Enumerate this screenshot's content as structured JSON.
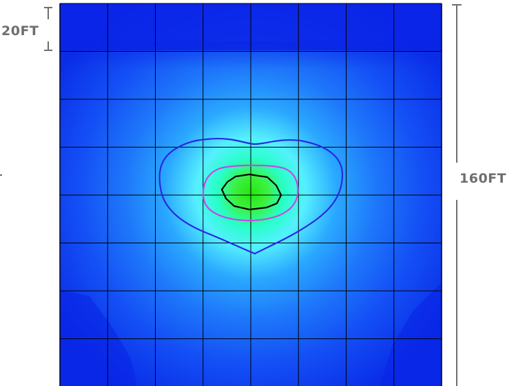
{
  "dimensions": {
    "top_band_label": "20FT",
    "full_length_label": "160FT"
  },
  "grid": {
    "columns": 8,
    "rows": 8,
    "line_color": "#000000"
  },
  "colors": {
    "edge_blue": "#0a23e6",
    "field_blue": "#0f46f5",
    "mid_blue": "#1e8cff",
    "light_cyan": "#55f0ff",
    "aqua": "#28ffc8",
    "green": "#3cf03c",
    "bright_green": "#23e60f",
    "contour_outer": "#2828e6",
    "contour_middle": "#c846e6",
    "contour_inner": "#000000",
    "dimension_line": "#6e6e6e"
  },
  "contours": [
    {
      "name": "outer",
      "color": "#2828e6"
    },
    {
      "name": "middle",
      "color": "#c846e6"
    },
    {
      "name": "inner",
      "color": "#000000"
    }
  ]
}
